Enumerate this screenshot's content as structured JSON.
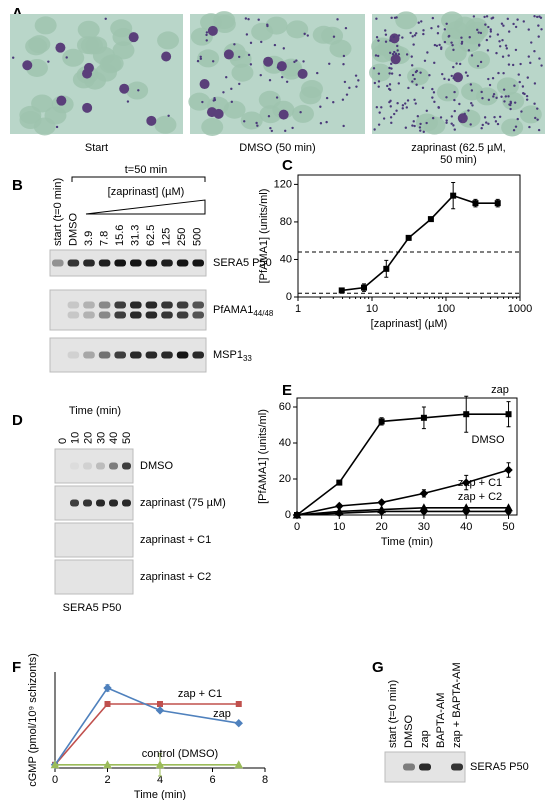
{
  "panels": {
    "A": {
      "letter": "A",
      "captions": [
        [
          "Start"
        ],
        [
          "DMSO (50 min)"
        ],
        [
          "zaprinast (62.5 µM,",
          "50 min)"
        ]
      ]
    },
    "B": {
      "letter": "B",
      "time_label": "t=50 min",
      "concentration_label": "[zaprinast] (µM)",
      "lanes": [
        "start (t=0 min)",
        "DMSO",
        "3.9",
        "7.8",
        "15.6",
        "31.3",
        "62.5",
        "125",
        "250",
        "500"
      ],
      "blots": [
        {
          "label": "SERA5 P50"
        },
        {
          "label": "PfAMA1",
          "sub": "44/48"
        },
        {
          "label": "MSP1",
          "sub": "33"
        }
      ]
    },
    "D": {
      "letter": "D",
      "axis_label": "Time (min)",
      "lanes": [
        "0",
        "10",
        "20",
        "30",
        "40",
        "50"
      ],
      "blots": [
        "DMSO",
        "zaprinast (75 µM)",
        "zaprinast + C1",
        "zaprinast + C2"
      ],
      "protein": "SERA5 P50"
    },
    "G": {
      "letter": "G",
      "lanes": [
        "start (t=0 min)",
        "DMSO",
        "zap",
        "BAPTA-AM",
        "zap + BAPTA-AM"
      ],
      "protein": "SERA5 P50"
    }
  },
  "chart_data": [
    {
      "letter": "C",
      "type": "line",
      "xscale": "log",
      "box": true,
      "x": [
        3.9,
        7.8,
        15.6,
        31.3,
        62.5,
        125,
        250,
        500
      ],
      "xlim": [
        1,
        1000
      ],
      "xticks": [
        1,
        10,
        100,
        1000
      ],
      "ylim": [
        0,
        130
      ],
      "yticks": [
        0,
        40,
        80,
        120
      ],
      "xlabel": "[zaprinast] (µM)",
      "ylabel": "[PfAMA1] (units/ml)",
      "reference_lines": [
        48,
        4
      ],
      "series": [
        {
          "color": "#000000",
          "marker": "square",
          "values": [
            7,
            10,
            30,
            63,
            83,
            108,
            100,
            100
          ],
          "errors": [
            null,
            4,
            9,
            null,
            null,
            14,
            4,
            4
          ]
        }
      ]
    },
    {
      "letter": "E",
      "type": "line",
      "box": true,
      "x": [
        0,
        10,
        20,
        30,
        40,
        50
      ],
      "xlim": [
        0,
        52
      ],
      "xticks": [
        0,
        10,
        20,
        30,
        40,
        50
      ],
      "ylim": [
        0,
        65
      ],
      "yticks": [
        0,
        20,
        40,
        60
      ],
      "xlabel": "Time (min)",
      "ylabel": "[PfAMA1] (units/ml)",
      "series": [
        {
          "name": "zap",
          "color": "#000000",
          "marker": "square",
          "values": [
            0,
            18,
            52,
            54,
            56,
            56
          ],
          "errors": [
            null,
            null,
            2,
            6,
            10,
            7
          ]
        },
        {
          "name": "DMSO",
          "color": "#000000",
          "marker": "diamond",
          "values": [
            0,
            5,
            7,
            12,
            18,
            25
          ],
          "errors": [
            null,
            null,
            null,
            2,
            4,
            4
          ]
        },
        {
          "name": "zap + C1",
          "color": "#000000",
          "marker": "triangle",
          "values": [
            0,
            2,
            3,
            4,
            4,
            4
          ],
          "errors": [
            null,
            null,
            null,
            null,
            null,
            null
          ]
        },
        {
          "name": "zap + C2",
          "color": "#000000",
          "marker": "circle",
          "values": [
            0,
            1,
            2,
            2,
            2,
            2
          ],
          "errors": [
            null,
            null,
            null,
            null,
            null,
            null
          ]
        }
      ]
    },
    {
      "letter": "F",
      "type": "line",
      "box": false,
      "x": [
        0,
        2,
        4,
        7
      ],
      "xlim": [
        0,
        8
      ],
      "xticks": [
        0,
        2,
        4,
        6,
        8
      ],
      "ylim": [
        0,
        3
      ],
      "xlabel": "Time (min)",
      "ylabel": "cGMP (pmol/10⁹ schizonts)",
      "series": [
        {
          "name": "zap + C1",
          "color": "#c0504d",
          "marker": "square",
          "values": [
            0.1,
            2,
            2,
            2
          ],
          "errors": [
            null,
            null,
            null,
            null
          ]
        },
        {
          "name": "zap",
          "color": "#4f81bd",
          "marker": "diamond",
          "values": [
            0.1,
            2.5,
            1.8,
            1.4
          ],
          "errors": [
            null,
            0.1,
            null,
            null
          ]
        },
        {
          "name": "control (DMSO)",
          "color": "#9bbb59",
          "marker": "triangle",
          "values": [
            0.1,
            0.1,
            0.1,
            0.1
          ],
          "errors": [
            null,
            null,
            0.35,
            null
          ]
        }
      ]
    }
  ]
}
